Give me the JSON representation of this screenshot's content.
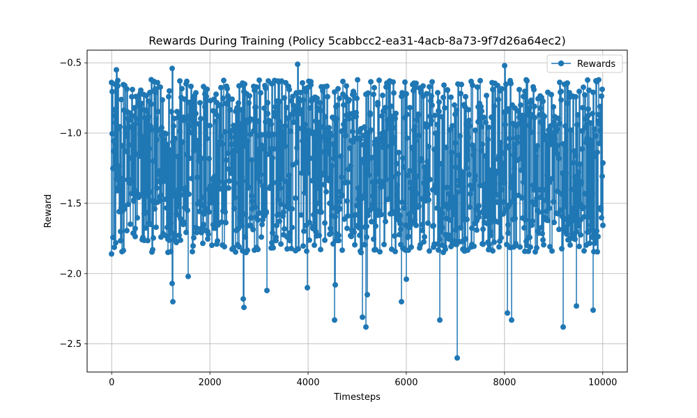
{
  "chart_data": {
    "type": "line",
    "title": "Rewards During Training (Policy 5cabbcc2-ea31-4acb-8a73-9f7d26a64ec2)",
    "xlabel": "Timesteps",
    "ylabel": "Reward",
    "xlim": [
      -500,
      10500
    ],
    "ylim": [
      -2.7,
      -0.41
    ],
    "xticks": [
      0,
      2000,
      4000,
      6000,
      8000,
      10000
    ],
    "yticks": [
      -0.5,
      -1.0,
      -1.5,
      -2.0,
      -2.5
    ],
    "xtick_labels": [
      "0",
      "2000",
      "4000",
      "6000",
      "8000",
      "10000"
    ],
    "ytick_labels": [
      "−0.5",
      "−1.0",
      "−1.5",
      "−2.0",
      "−2.5"
    ],
    "grid": true,
    "legend_position": "top-right",
    "series": [
      {
        "name": "Rewards",
        "color": "#1f77b4",
        "marker": "circle",
        "n_points": 10000,
        "x_start": 0,
        "x_end": 9999,
        "typical_band": [
          -1.85,
          -0.62
        ],
        "notable_points": [
          {
            "x": 0,
            "y": -0.64
          },
          {
            "x": 0,
            "y": -1.86
          },
          {
            "x": 100,
            "y": -0.55
          },
          {
            "x": 1230,
            "y": -0.54
          },
          {
            "x": 1230,
            "y": -2.07
          },
          {
            "x": 1240,
            "y": -2.2
          },
          {
            "x": 1560,
            "y": -2.02
          },
          {
            "x": 2680,
            "y": -2.18
          },
          {
            "x": 2700,
            "y": -2.24
          },
          {
            "x": 3160,
            "y": -2.12
          },
          {
            "x": 3780,
            "y": -0.51
          },
          {
            "x": 3980,
            "y": -2.1
          },
          {
            "x": 4540,
            "y": -2.33
          },
          {
            "x": 4550,
            "y": -2.08
          },
          {
            "x": 5100,
            "y": -2.31
          },
          {
            "x": 5180,
            "y": -2.38
          },
          {
            "x": 5200,
            "y": -2.15
          },
          {
            "x": 5900,
            "y": -2.2
          },
          {
            "x": 6000,
            "y": -2.04
          },
          {
            "x": 6680,
            "y": -2.33
          },
          {
            "x": 7030,
            "y": -2.6
          },
          {
            "x": 8000,
            "y": -0.52
          },
          {
            "x": 8060,
            "y": -2.28
          },
          {
            "x": 8150,
            "y": -2.33
          },
          {
            "x": 9200,
            "y": -2.38
          },
          {
            "x": 9460,
            "y": -2.23
          },
          {
            "x": 9800,
            "y": -2.26
          },
          {
            "x": 9800,
            "y": -0.71
          }
        ]
      }
    ]
  }
}
